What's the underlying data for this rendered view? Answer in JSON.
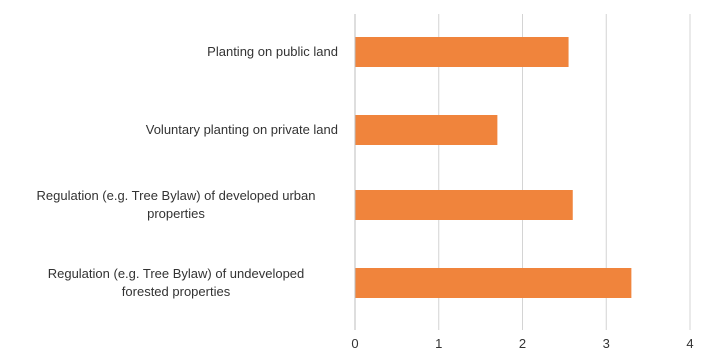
{
  "chart_data": {
    "type": "bar",
    "orientation": "horizontal",
    "title": "",
    "xlabel": "",
    "ylabel": "",
    "categories": [
      [
        "Planting on public land"
      ],
      [
        "Voluntary planting on private land"
      ],
      [
        "Regulation (e.g. Tree Bylaw) of developed urban",
        "properties"
      ],
      [
        "Regulation (e.g. Tree Bylaw) of undeveloped",
        "forested properties"
      ]
    ],
    "values": [
      2.55,
      1.7,
      2.6,
      3.3
    ],
    "xlim": [
      0,
      4
    ],
    "xticks": [
      "0",
      "1",
      "2",
      "3",
      "4"
    ],
    "grid": "vertical",
    "legend": "none",
    "bar_color": "#f0843c",
    "grid_color": "#d4d4d4",
    "axis_color": "#bdbdbd",
    "text_color": "#333333"
  }
}
